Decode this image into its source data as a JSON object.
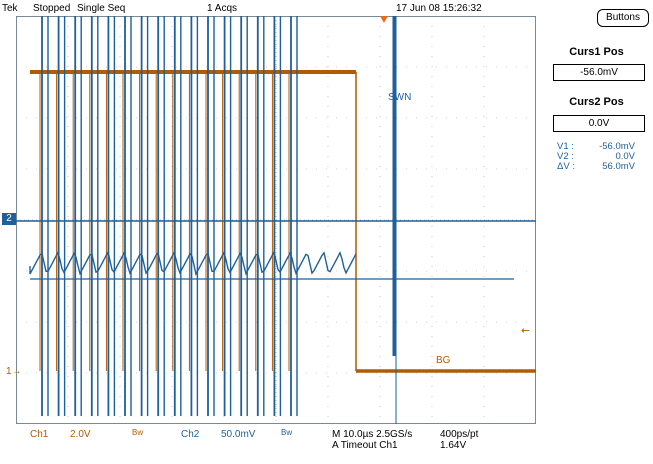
{
  "topbar": {
    "brand": "Tek",
    "state": "Stopped",
    "mode": "Single Seq",
    "acqs": "1 Acqs",
    "datetime": "17 Jun 08 15:26:32"
  },
  "waveform": {
    "label_swn": "SWN",
    "label_bg": "BG",
    "ch2_marker": "2",
    "ch1_marker": "1",
    "trigger_marker": "←"
  },
  "side": {
    "buttons_label": "Buttons",
    "curs1_label": "Curs1 Pos",
    "curs1_value": "-56.0mV",
    "curs2_label": "Curs2 Pos",
    "curs2_value": "0.0V",
    "readout": [
      {
        "name": "V1 :",
        "value": "-56.0mV"
      },
      {
        "name": "V2 :",
        "value": "0.0V"
      },
      {
        "name": "ΔV :",
        "value": "56.0mV"
      }
    ]
  },
  "bottom": {
    "ch1": "Ch1",
    "ch1_scale": "2.0V",
    "bw1": "Bw",
    "ch2": "Ch2",
    "ch2_scale": "50.0mV",
    "bw2": "Bw",
    "timebase": "M 10.0µs 2.5GS/s",
    "trigger_mode": "A  Timeout  Ch1",
    "resolution": "400ps/pt",
    "trigger_level": "1.64V"
  },
  "colors": {
    "ch1": "#b15c00",
    "ch2": "#1f5f9a",
    "grid": "#9aa8b0"
  }
}
